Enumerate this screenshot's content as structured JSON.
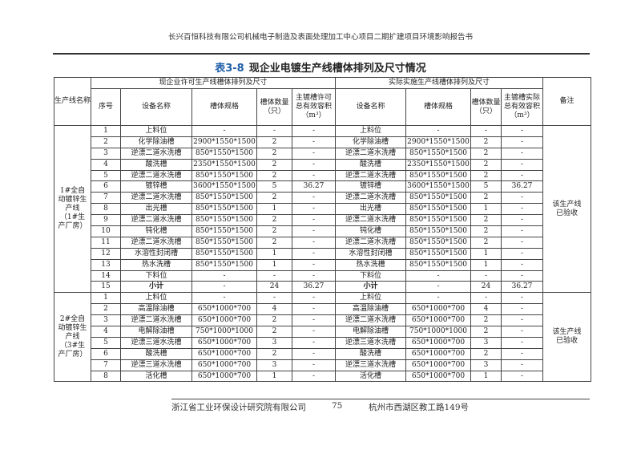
{
  "header": {
    "text": "长兴百恒科技有限公司机械电子制造及表面处理加工中心项目二期扩建项目环境影响报告书"
  },
  "title": {
    "number": "表3-8",
    "text": "现企业电镀生产线槽体排列及尺寸情况"
  },
  "table": {
    "col_line": "生产线名称",
    "group_permit": "现企业许可生产线槽体排列及尺寸",
    "group_actual": "实际实施生产线槽体排列及尺寸",
    "col_remark": "备注",
    "col_seq": "序号",
    "col_name": "设备名称",
    "col_spec": "槽体规格",
    "col_qty": "槽体数量（只）",
    "col_vol_permit": "主镀槽许可总有效容积（m³）",
    "col_vol_actual": "主镀槽实际总有效容积（m³）",
    "groups": [
      {
        "line": "1#全自动镀锌生产线（1#生产厂房）",
        "remark": "该生产线已验收",
        "rows": [
          [
            "1",
            "上料位",
            "-",
            "-",
            "-",
            "上料位",
            "-",
            "-",
            "-"
          ],
          [
            "2",
            "化学除油槽",
            "2900*1550*1500",
            "2",
            "-",
            "化学除油槽",
            "2900*1550*1500",
            "2",
            "-"
          ],
          [
            "3",
            "逆漂二道水洗槽",
            "850*1550*1500",
            "2",
            "-",
            "逆漂二道水洗槽",
            "850*1550*1500",
            "2",
            "-"
          ],
          [
            "4",
            "酸洗槽",
            "2350*1550*1500",
            "2",
            "-",
            "酸洗槽",
            "2350*1550*1500",
            "2",
            "-"
          ],
          [
            "5",
            "逆漂二道水洗槽",
            "850*1550*1500",
            "2",
            "-",
            "逆漂二道水洗槽",
            "850*1550*1500",
            "2",
            "-"
          ],
          [
            "6",
            "镀锌槽",
            "3600*1550*1500",
            "5",
            "36.27",
            "镀锌槽",
            "3600*1550*1500",
            "5",
            "36.27"
          ],
          [
            "7",
            "逆漂二道水洗槽",
            "850*1550*1500",
            "2",
            "-",
            "逆漂二道水洗槽",
            "850*1550*1500",
            "2",
            "-"
          ],
          [
            "8",
            "出光槽",
            "850*1550*1500",
            "1",
            "-",
            "出光槽",
            "850*1550*1500",
            "1",
            "-"
          ],
          [
            "9",
            "逆漂二道水洗槽",
            "850*1550*1500",
            "2",
            "-",
            "逆漂二道水洗槽",
            "850*1550*1500",
            "2",
            "-"
          ],
          [
            "10",
            "钝化槽",
            "850*1550*1500",
            "2",
            "-",
            "钝化槽",
            "850*1550*1500",
            "2",
            "-"
          ],
          [
            "11",
            "逆漂二道水洗槽",
            "850*1550*1500",
            "2",
            "-",
            "逆漂二道水洗槽",
            "850*1550*1500",
            "2",
            "-"
          ],
          [
            "12",
            "水溶性封闭槽",
            "850*1550*1500",
            "1",
            "-",
            "水溶性封闭槽",
            "850*1550*1500",
            "1",
            "-"
          ],
          [
            "13",
            "热水洗槽",
            "850*1550*1500",
            "1",
            "-",
            "热水洗槽",
            "850*1550*1500",
            "1",
            "-"
          ],
          [
            "14",
            "下料位",
            "-",
            "-",
            "-",
            "下料位",
            "-",
            "-",
            "-"
          ],
          [
            "15",
            "小计",
            "-",
            "24",
            "36.27",
            "小计",
            "-",
            "24",
            "36.27"
          ]
        ]
      },
      {
        "line": "2#全自动镀锌生产线（3#生产厂房）",
        "remark": "该生产线已验收",
        "rows": [
          [
            "1",
            "上料位",
            "-",
            "-",
            "-",
            "上料位",
            "-",
            "-",
            "-"
          ],
          [
            "2",
            "高温除油槽",
            "650*1000*700",
            "4",
            "-",
            "高温除油槽",
            "650*1000*700",
            "4",
            "-"
          ],
          [
            "3",
            "逆漂二道水洗槽",
            "650*1000*700",
            "2",
            "-",
            "逆漂二道水洗槽",
            "650*1000*700",
            "2",
            "-"
          ],
          [
            "4",
            "电解除油槽",
            "750*1000*1000",
            "2",
            "-",
            "电解除油槽",
            "750*1000*1000",
            "2",
            "-"
          ],
          [
            "5",
            "逆漂三道水洗槽",
            "650*1000*700",
            "3",
            "-",
            "逆漂三道水洗槽",
            "650*1000*700",
            "3",
            "-"
          ],
          [
            "6",
            "酸洗槽",
            "650*1000*700",
            "2",
            "-",
            "酸洗槽",
            "650*1000*700",
            "2",
            "-"
          ],
          [
            "7",
            "逆漂三道水洗槽",
            "650*1000*700",
            "3",
            "-",
            "逆漂三道水洗槽",
            "650*1000*700",
            "3",
            "-"
          ],
          [
            "8",
            "活化槽",
            "650*1000*700",
            "1",
            "-",
            "活化槽",
            "650*1000*700",
            "1",
            "-"
          ]
        ]
      }
    ]
  },
  "footer": {
    "org": "浙江省工业环保设计研究院有限公司",
    "page": "75",
    "address": "杭州市西湖区教工路149号"
  }
}
